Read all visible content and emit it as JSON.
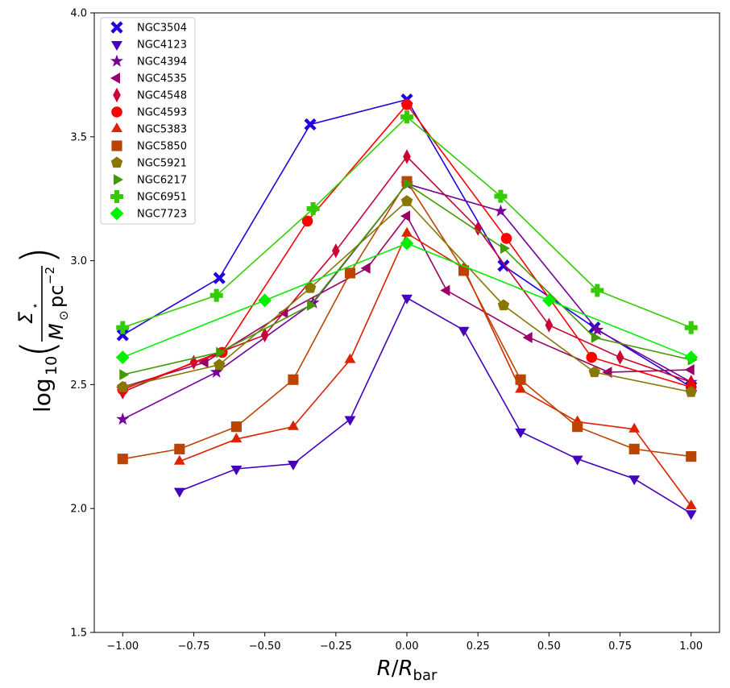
{
  "chart_data": {
    "type": "line",
    "title": "",
    "xlabel": "R/R_bar",
    "ylabel": "log10(Σ⋆ / M⊙ pc⁻²)",
    "xlim": [
      -1.1,
      1.1
    ],
    "ylim": [
      1.5,
      4.0
    ],
    "grid": false,
    "legend_position": "top-left",
    "x_ticks": [
      -1.0,
      -0.75,
      -0.5,
      -0.25,
      0.0,
      0.25,
      0.5,
      0.75,
      1.0
    ],
    "x_tick_labels": [
      "−1.00",
      "−0.75",
      "−0.50",
      "−0.25",
      "0.00",
      "0.25",
      "0.50",
      "0.75",
      "1.00"
    ],
    "y_ticks": [
      1.5,
      2.0,
      2.5,
      3.0,
      3.5,
      4.0
    ],
    "y_tick_labels": [
      "1.5",
      "2.0",
      "2.5",
      "3.0",
      "3.5",
      "4.0"
    ],
    "series": [
      {
        "name": "NGC3504",
        "marker": "X",
        "color": "#2200dd",
        "x": [
          -1.0,
          -0.66,
          -0.34,
          0.0,
          0.34,
          0.66,
          1.0
        ],
        "y": [
          2.7,
          2.93,
          3.55,
          3.65,
          2.98,
          2.73,
          2.49
        ]
      },
      {
        "name": "NGC4123",
        "marker": "v",
        "color": "#4400bb",
        "x": [
          -0.8,
          -0.6,
          -0.4,
          -0.2,
          0.0,
          0.2,
          0.4,
          0.6,
          0.8,
          1.0
        ],
        "y": [
          2.07,
          2.16,
          2.18,
          2.36,
          2.85,
          2.72,
          2.31,
          2.2,
          2.12,
          1.98
        ]
      },
      {
        "name": "NGC4394",
        "marker": "*",
        "color": "#770099",
        "x": [
          -1.0,
          -0.67,
          -0.33,
          0.0,
          0.33,
          0.67,
          1.0
        ],
        "y": [
          2.36,
          2.55,
          2.83,
          3.31,
          3.2,
          2.72,
          2.51
        ]
      },
      {
        "name": "NGC4535",
        "marker": "<",
        "color": "#990066",
        "x": [
          -1.0,
          -0.71,
          -0.43,
          -0.14,
          0.0,
          0.14,
          0.43,
          0.71,
          1.0
        ],
        "y": [
          2.49,
          2.59,
          2.79,
          2.97,
          3.18,
          2.88,
          2.69,
          2.55,
          2.56
        ]
      },
      {
        "name": "NGC4548",
        "marker": "d",
        "color": "#cc0033",
        "x": [
          -1.0,
          -0.75,
          -0.5,
          -0.25,
          0.0,
          0.25,
          0.5,
          0.75,
          1.0
        ],
        "y": [
          2.47,
          2.59,
          2.7,
          3.04,
          3.42,
          3.13,
          2.74,
          2.61,
          2.51
        ]
      },
      {
        "name": "NGC4593",
        "marker": "o",
        "color": "#ff0000",
        "x": [
          -1.0,
          -0.65,
          -0.35,
          0.0,
          0.35,
          0.65,
          1.0
        ],
        "y": [
          2.48,
          2.63,
          3.16,
          3.63,
          3.09,
          2.61,
          2.49
        ]
      },
      {
        "name": "NGC5383",
        "marker": "^",
        "color": "#dd2200",
        "x": [
          -0.8,
          -0.6,
          -0.4,
          -0.2,
          0.0,
          0.2,
          0.4,
          0.6,
          0.8,
          1.0
        ],
        "y": [
          2.19,
          2.28,
          2.33,
          2.6,
          3.11,
          2.97,
          2.48,
          2.35,
          2.32,
          2.01
        ]
      },
      {
        "name": "NGC5850",
        "marker": "s",
        "color": "#bb4400",
        "x": [
          -1.0,
          -0.8,
          -0.6,
          -0.4,
          -0.2,
          0.0,
          0.2,
          0.4,
          0.6,
          0.8,
          1.0
        ],
        "y": [
          2.2,
          2.24,
          2.33,
          2.52,
          2.95,
          3.32,
          2.96,
          2.52,
          2.33,
          2.24,
          2.21
        ]
      },
      {
        "name": "NGC5921",
        "marker": "p",
        "color": "#887700",
        "x": [
          -1.0,
          -0.66,
          -0.34,
          0.0,
          0.34,
          0.66,
          1.0
        ],
        "y": [
          2.49,
          2.58,
          2.89,
          3.24,
          2.82,
          2.55,
          2.47
        ]
      },
      {
        "name": "NGC6217",
        "marker": ">",
        "color": "#449900",
        "x": [
          -1.0,
          -0.66,
          -0.34,
          0.0,
          0.34,
          0.66,
          1.0
        ],
        "y": [
          2.54,
          2.63,
          2.82,
          3.31,
          3.05,
          2.69,
          2.6
        ]
      },
      {
        "name": "NGC6951",
        "marker": "P",
        "color": "#33cc00",
        "x": [
          -1.0,
          -0.67,
          -0.33,
          0.0,
          0.33,
          0.67,
          1.0
        ],
        "y": [
          2.73,
          2.86,
          3.21,
          3.58,
          3.26,
          2.88,
          2.73
        ]
      },
      {
        "name": "NGC7723",
        "marker": "D",
        "color": "#00ee00",
        "x": [
          -1.0,
          -0.5,
          0.0,
          0.5,
          1.0
        ],
        "y": [
          2.61,
          2.84,
          3.07,
          2.84,
          2.61
        ]
      }
    ]
  }
}
